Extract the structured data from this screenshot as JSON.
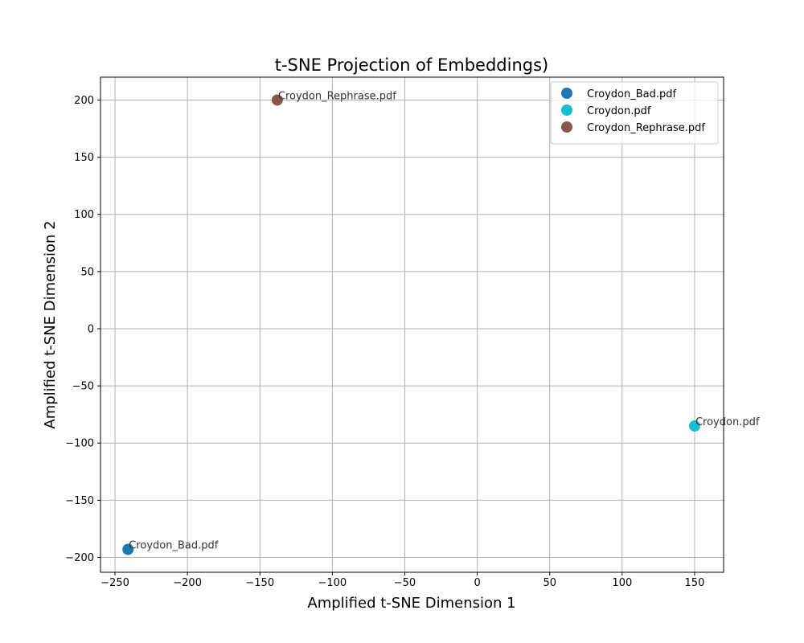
{
  "chart_data": {
    "type": "scatter",
    "title": "t-SNE Projection of Embeddings)",
    "xlabel": "Amplified t-SNE Dimension 1",
    "ylabel": "Amplified t-SNE Dimension 2",
    "xlim": [
      -260,
      170
    ],
    "ylim": [
      -213,
      220
    ],
    "xticks": [
      -250,
      -200,
      -150,
      -100,
      -50,
      0,
      50,
      100,
      150
    ],
    "yticks": [
      -200,
      -150,
      -100,
      -50,
      0,
      50,
      100,
      150,
      200
    ],
    "grid": true,
    "legend_position": "top-right",
    "series": [
      {
        "name": "Croydon_Bad.pdf",
        "color": "#1f77b4",
        "x": -241,
        "y": -193,
        "label": "Croydon_Bad.pdf"
      },
      {
        "name": "Croydon.pdf",
        "color": "#17becf",
        "x": 150,
        "y": -85,
        "label": "Croydon.pdf"
      },
      {
        "name": "Croydon_Rephrase.pdf",
        "color": "#8c564b",
        "x": -138,
        "y": 200,
        "label": "Croydon_Rephrase.pdf"
      }
    ]
  }
}
